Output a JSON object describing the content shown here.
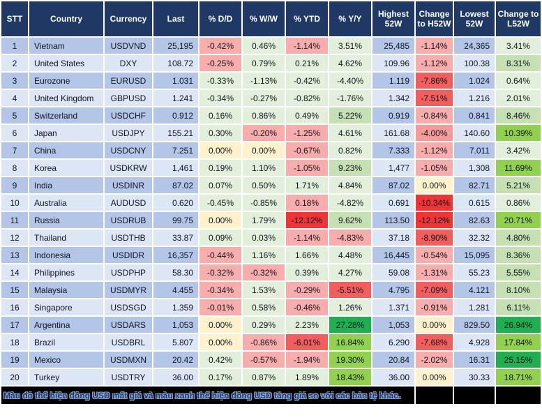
{
  "colors": {
    "header_bg": "#1F3864",
    "header_text": "#FFFFFF",
    "row_odd": "#B4C6E7",
    "row_even": "#DCE6F5",
    "pink": "#F8ADAD",
    "pink2": "#F79A9A",
    "red_med": "#F15E5E",
    "red_strong": "#EE3434",
    "cream": "#FFF2CC",
    "green0": "#E2EFDA",
    "green1": "#C6E0B4",
    "green2": "#92D050",
    "green3": "#1FAF51",
    "note_bg": "#000000",
    "note_text": "#1F3864"
  },
  "table": {
    "columns": [
      {
        "id": "stt",
        "label": "STT"
      },
      {
        "id": "country",
        "label": "Country"
      },
      {
        "id": "currency",
        "label": "Currency"
      },
      {
        "id": "last",
        "label": "Last"
      },
      {
        "id": "dd",
        "label": "% D/D"
      },
      {
        "id": "ww",
        "label": "% W/W"
      },
      {
        "id": "ytd",
        "label": "% YTD"
      },
      {
        "id": "yy",
        "label": "% Y/Y"
      },
      {
        "id": "high",
        "label": "Highest 52W"
      },
      {
        "id": "chg_h",
        "label": "Change to H52W"
      },
      {
        "id": "low",
        "label": "Lowest 52W"
      },
      {
        "id": "chg_l",
        "label": "Change to L52W"
      }
    ],
    "rows": [
      {
        "stt": "1",
        "country": "Vietnam",
        "currency": "USDVND",
        "last": "25,195",
        "dd": {
          "v": "-0.42%",
          "c": "pink"
        },
        "ww": {
          "v": "0.46%",
          "c": "green0"
        },
        "ytd": {
          "v": "-1.14%",
          "c": "pink"
        },
        "yy": {
          "v": "3.51%",
          "c": "green0"
        },
        "high": "25,485",
        "chg_h": {
          "v": "-1.14%",
          "c": "pink"
        },
        "low": "24,365",
        "chg_l": {
          "v": "3.41%",
          "c": "green0"
        }
      },
      {
        "stt": "2",
        "country": "United States",
        "currency": "DXY",
        "last": "108.72",
        "dd": {
          "v": "-0.25%",
          "c": "pink"
        },
        "ww": {
          "v": "0.79%",
          "c": "green0"
        },
        "ytd": {
          "v": "0.21%",
          "c": "green0"
        },
        "yy": {
          "v": "4.62%",
          "c": "green0"
        },
        "high": "109.96",
        "chg_h": {
          "v": "-1.12%",
          "c": "pink"
        },
        "low": "100.38",
        "chg_l": {
          "v": "8.31%",
          "c": "green1"
        }
      },
      {
        "stt": "3",
        "country": "Eurozone",
        "currency": "EURUSD",
        "last": "1.031",
        "dd": {
          "v": "-0.33%",
          "c": "green0"
        },
        "ww": {
          "v": "-1.13%",
          "c": "green0"
        },
        "ytd": {
          "v": "-0.42%",
          "c": "green0"
        },
        "yy": {
          "v": "-4.40%",
          "c": "green0"
        },
        "high": "1.119",
        "chg_h": {
          "v": "-7.86%",
          "c": "red_med"
        },
        "low": "1.024",
        "chg_l": {
          "v": "0.64%",
          "c": "green0"
        }
      },
      {
        "stt": "4",
        "country": "United Kingdom",
        "currency": "GBPUSD",
        "last": "1.241",
        "dd": {
          "v": "-0.34%",
          "c": "green0"
        },
        "ww": {
          "v": "-0.27%",
          "c": "green0"
        },
        "ytd": {
          "v": "-0.82%",
          "c": "green0"
        },
        "yy": {
          "v": "-1.76%",
          "c": "green0"
        },
        "high": "1.342",
        "chg_h": {
          "v": "-7.51%",
          "c": "red_med"
        },
        "low": "1.216",
        "chg_l": {
          "v": "2.01%",
          "c": "green0"
        }
      },
      {
        "stt": "5",
        "country": "Switzerland",
        "currency": "USDCHF",
        "last": "0.912",
        "dd": {
          "v": "0.16%",
          "c": "green0"
        },
        "ww": {
          "v": "0.86%",
          "c": "green0"
        },
        "ytd": {
          "v": "0.49%",
          "c": "green0"
        },
        "yy": {
          "v": "5.22%",
          "c": "green1"
        },
        "high": "0.919",
        "chg_h": {
          "v": "-0.84%",
          "c": "pink"
        },
        "low": "0.841",
        "chg_l": {
          "v": "8.46%",
          "c": "green1"
        }
      },
      {
        "stt": "6",
        "country": "Japan",
        "currency": "USDJPY",
        "last": "155.21",
        "dd": {
          "v": "0.30%",
          "c": "green0"
        },
        "ww": {
          "v": "-0.20%",
          "c": "pink"
        },
        "ytd": {
          "v": "-1.25%",
          "c": "pink"
        },
        "yy": {
          "v": "4.61%",
          "c": "green0"
        },
        "high": "161.68",
        "chg_h": {
          "v": "-4.00%",
          "c": "pink2"
        },
        "low": "140.60",
        "chg_l": {
          "v": "10.39%",
          "c": "green2"
        }
      },
      {
        "stt": "7",
        "country": "China",
        "currency": "USDCNY",
        "last": "7.251",
        "dd": {
          "v": "0.00%",
          "c": "cream"
        },
        "ww": {
          "v": "0.00%",
          "c": "cream"
        },
        "ytd": {
          "v": "-0.67%",
          "c": "pink"
        },
        "yy": {
          "v": "0.82%",
          "c": "green0"
        },
        "high": "7.333",
        "chg_h": {
          "v": "-1.12%",
          "c": "pink"
        },
        "low": "7.011",
        "chg_l": {
          "v": "3.42%",
          "c": "green0"
        }
      },
      {
        "stt": "8",
        "country": "Korea",
        "currency": "USDKRW",
        "last": "1,461",
        "dd": {
          "v": "0.19%",
          "c": "green0"
        },
        "ww": {
          "v": "1.10%",
          "c": "green0"
        },
        "ytd": {
          "v": "-1.05%",
          "c": "pink"
        },
        "yy": {
          "v": "9.23%",
          "c": "green1"
        },
        "high": "1,477",
        "chg_h": {
          "v": "-1.05%",
          "c": "pink"
        },
        "low": "1,308",
        "chg_l": {
          "v": "11.69%",
          "c": "green2"
        }
      },
      {
        "stt": "9",
        "country": "India",
        "currency": "USDINR",
        "last": "87.02",
        "dd": {
          "v": "0.07%",
          "c": "green0"
        },
        "ww": {
          "v": "0.50%",
          "c": "green0"
        },
        "ytd": {
          "v": "1.71%",
          "c": "green0"
        },
        "yy": {
          "v": "4.84%",
          "c": "green0"
        },
        "high": "87.02",
        "chg_h": {
          "v": "0.00%",
          "c": "cream"
        },
        "low": "82.71",
        "chg_l": {
          "v": "5.21%",
          "c": "green1"
        }
      },
      {
        "stt": "10",
        "country": "Australia",
        "currency": "AUDUSD",
        "last": "0.620",
        "dd": {
          "v": "-0.45%",
          "c": "green0"
        },
        "ww": {
          "v": "-0.85%",
          "c": "green0"
        },
        "ytd": {
          "v": "0.18%",
          "c": "pink"
        },
        "yy": {
          "v": "-4.82%",
          "c": "green0"
        },
        "high": "0.691",
        "chg_h": {
          "v": "-10.34%",
          "c": "red_strong"
        },
        "low": "0.615",
        "chg_l": {
          "v": "0.86%",
          "c": "green0"
        }
      },
      {
        "stt": "11",
        "country": "Russia",
        "currency": "USDRUB",
        "last": "99.75",
        "dd": {
          "v": "0.00%",
          "c": "cream"
        },
        "ww": {
          "v": "1.79%",
          "c": "green0"
        },
        "ytd": {
          "v": "-12.12%",
          "c": "red_strong"
        },
        "yy": {
          "v": "9.62%",
          "c": "green1"
        },
        "high": "113.50",
        "chg_h": {
          "v": "-12.12%",
          "c": "red_strong"
        },
        "low": "82.63",
        "chg_l": {
          "v": "20.71%",
          "c": "green2"
        }
      },
      {
        "stt": "12",
        "country": "Thailand",
        "currency": "USDTHB",
        "last": "33.87",
        "dd": {
          "v": "0.09%",
          "c": "green0"
        },
        "ww": {
          "v": "0.03%",
          "c": "green0"
        },
        "ytd": {
          "v": "-1.14%",
          "c": "pink"
        },
        "yy": {
          "v": "-4.83%",
          "c": "pink"
        },
        "high": "37.18",
        "chg_h": {
          "v": "-8.90%",
          "c": "red_med"
        },
        "low": "32.32",
        "chg_l": {
          "v": "4.80%",
          "c": "green1"
        }
      },
      {
        "stt": "13",
        "country": "Indonesia",
        "currency": "USDIDR",
        "last": "16,357",
        "dd": {
          "v": "-0.44%",
          "c": "pink"
        },
        "ww": {
          "v": "1.16%",
          "c": "green0"
        },
        "ytd": {
          "v": "1.66%",
          "c": "green0"
        },
        "yy": {
          "v": "4.48%",
          "c": "green0"
        },
        "high": "16,445",
        "chg_h": {
          "v": "-0.54%",
          "c": "pink"
        },
        "low": "15,095",
        "chg_l": {
          "v": "8.36%",
          "c": "green1"
        }
      },
      {
        "stt": "14",
        "country": "Philippines",
        "currency": "USDPHP",
        "last": "58.30",
        "dd": {
          "v": "-0.32%",
          "c": "pink"
        },
        "ww": {
          "v": "-0.32%",
          "c": "pink"
        },
        "ytd": {
          "v": "0.39%",
          "c": "green0"
        },
        "yy": {
          "v": "4.27%",
          "c": "green0"
        },
        "high": "59.08",
        "chg_h": {
          "v": "-1.31%",
          "c": "pink"
        },
        "low": "55.23",
        "chg_l": {
          "v": "5.55%",
          "c": "green1"
        }
      },
      {
        "stt": "15",
        "country": "Malaysia",
        "currency": "USDMYR",
        "last": "4.455",
        "dd": {
          "v": "-0.34%",
          "c": "pink"
        },
        "ww": {
          "v": "1.53%",
          "c": "green0"
        },
        "ytd": {
          "v": "-0.29%",
          "c": "pink"
        },
        "yy": {
          "v": "-5.51%",
          "c": "red_med"
        },
        "high": "4.795",
        "chg_h": {
          "v": "-7.09%",
          "c": "red_med"
        },
        "low": "4.121",
        "chg_l": {
          "v": "8.10%",
          "c": "green1"
        }
      },
      {
        "stt": "16",
        "country": "Singapore",
        "currency": "USDSGD",
        "last": "1.359",
        "dd": {
          "v": "-0.01%",
          "c": "pink"
        },
        "ww": {
          "v": "0.58%",
          "c": "green0"
        },
        "ytd": {
          "v": "-0.46%",
          "c": "pink"
        },
        "yy": {
          "v": "1.26%",
          "c": "green0"
        },
        "high": "1.371",
        "chg_h": {
          "v": "-0.91%",
          "c": "pink"
        },
        "low": "1.281",
        "chg_l": {
          "v": "6.11%",
          "c": "green1"
        }
      },
      {
        "stt": "17",
        "country": "Argentina",
        "currency": "USDARS",
        "last": "1,053",
        "dd": {
          "v": "0.00%",
          "c": "cream"
        },
        "ww": {
          "v": "0.29%",
          "c": "green0"
        },
        "ytd": {
          "v": "2.23%",
          "c": "green0"
        },
        "yy": {
          "v": "27.28%",
          "c": "green3"
        },
        "high": "1,053",
        "chg_h": {
          "v": "0.00%",
          "c": "cream"
        },
        "low": "829.50",
        "chg_l": {
          "v": "26.94%",
          "c": "green3"
        }
      },
      {
        "stt": "18",
        "country": "Brazil",
        "currency": "USDBRL",
        "last": "5.807",
        "dd": {
          "v": "0.00%",
          "c": "cream"
        },
        "ww": {
          "v": "-0.86%",
          "c": "pink"
        },
        "ytd": {
          "v": "-6.01%",
          "c": "red_med"
        },
        "yy": {
          "v": "16.84%",
          "c": "green2"
        },
        "high": "6.290",
        "chg_h": {
          "v": "-7.68%",
          "c": "red_med"
        },
        "low": "4.928",
        "chg_l": {
          "v": "17.84%",
          "c": "green2"
        }
      },
      {
        "stt": "19",
        "country": "Mexico",
        "currency": "USDMXN",
        "last": "20.42",
        "dd": {
          "v": "0.42%",
          "c": "green0"
        },
        "ww": {
          "v": "-0.57%",
          "c": "pink"
        },
        "ytd": {
          "v": "-1.94%",
          "c": "pink"
        },
        "yy": {
          "v": "19.30%",
          "c": "green2"
        },
        "high": "20.84",
        "chg_h": {
          "v": "-2.02%",
          "c": "pink"
        },
        "low": "16.31",
        "chg_l": {
          "v": "25.15%",
          "c": "green3"
        }
      },
      {
        "stt": "20",
        "country": "Turkey",
        "currency": "USDTRY",
        "last": "36.00",
        "dd": {
          "v": "0.17%",
          "c": "green0"
        },
        "ww": {
          "v": "0.87%",
          "c": "green0"
        },
        "ytd": {
          "v": "1.89%",
          "c": "green0"
        },
        "yy": {
          "v": "18.43%",
          "c": "green2"
        },
        "high": "36.00",
        "chg_h": {
          "v": "0.00%",
          "c": "cream"
        },
        "low": "30.33",
        "chg_l": {
          "v": "18.71%",
          "c": "green2"
        }
      }
    ]
  },
  "footer": {
    "note": "Màu đỏ thể hiện đồng USD mất giá và màu xanh thể hiện đồng USD tăng giá so với các bản tệ khác."
  }
}
